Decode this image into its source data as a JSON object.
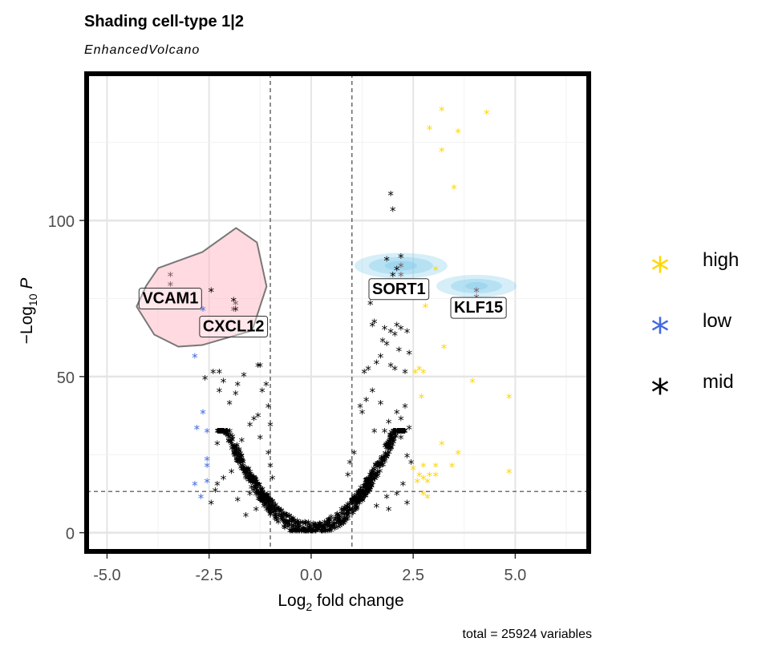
{
  "chart_data": {
    "type": "scatter",
    "title": "Shading cell-type 1|2",
    "subtitle": "EnhancedVolcano",
    "xlabel": "Log2 fold change",
    "ylabel": "-Log10 P",
    "caption": "total = 25924 variables",
    "xlim": [
      -5.5,
      6.8
    ],
    "ylim": [
      -6,
      147
    ],
    "x_ticks": [
      "-5.0",
      "-2.5",
      "0.0",
      "2.5",
      "5.0"
    ],
    "x_tick_values": [
      -5,
      -2.5,
      0,
      2.5,
      5
    ],
    "y_ticks": [
      "0",
      "50",
      "100"
    ],
    "y_tick_values": [
      0,
      50,
      100
    ],
    "fc_cutoff": 1.0,
    "p_cutoff_y": 13.2,
    "grid": true,
    "legend_position": "right",
    "colors": {
      "high": "#FFD700",
      "low": "#4169E1",
      "mid": "#000000",
      "shade1": "#FFB6C1",
      "shade2": "#87CEEB"
    },
    "series": [
      {
        "name": "high",
        "color": "#FFD700",
        "points": [
          [
            3.2,
            135
          ],
          [
            4.3,
            134
          ],
          [
            2.9,
            129
          ],
          [
            3.6,
            128
          ],
          [
            3.2,
            122
          ],
          [
            3.5,
            110
          ],
          [
            3.05,
            84
          ],
          [
            2.8,
            72
          ],
          [
            3.25,
            59
          ],
          [
            2.65,
            52
          ],
          [
            2.75,
            51
          ],
          [
            2.55,
            51
          ],
          [
            3.95,
            48
          ],
          [
            2.7,
            43
          ],
          [
            4.85,
            43
          ],
          [
            4.85,
            19
          ],
          [
            3.2,
            28
          ],
          [
            3.6,
            25
          ],
          [
            2.5,
            20
          ],
          [
            2.75,
            21
          ],
          [
            3.05,
            21
          ],
          [
            3.45,
            21
          ],
          [
            2.65,
            18
          ],
          [
            2.9,
            18
          ],
          [
            3.05,
            18
          ],
          [
            2.6,
            16
          ],
          [
            2.75,
            17
          ],
          [
            2.85,
            16
          ],
          [
            2.75,
            12
          ],
          [
            2.85,
            11
          ]
        ]
      },
      {
        "name": "low",
        "color": "#4169E1",
        "points": [
          [
            -2.65,
            71
          ],
          [
            -2.85,
            56
          ],
          [
            -2.65,
            38
          ],
          [
            -2.8,
            33
          ],
          [
            -2.55,
            32
          ],
          [
            -2.55,
            23
          ],
          [
            -2.55,
            21
          ],
          [
            -2.55,
            16
          ],
          [
            -2.85,
            15
          ],
          [
            -2.7,
            11
          ]
        ]
      },
      {
        "name": "mid",
        "color": "#000000",
        "points": [
          [
            1.95,
            108
          ],
          [
            2.0,
            103
          ],
          [
            2.2,
            88
          ],
          [
            1.85,
            87
          ],
          [
            2.1,
            84
          ],
          [
            2.0,
            82
          ],
          [
            1.45,
            73
          ],
          [
            -2.45,
            77
          ],
          [
            -1.9,
            74
          ],
          [
            -1.85,
            71
          ],
          [
            1.5,
            66
          ],
          [
            1.55,
            67
          ],
          [
            1.8,
            65
          ],
          [
            1.95,
            64
          ],
          [
            2.05,
            63
          ],
          [
            2.1,
            66
          ],
          [
            2.2,
            65
          ],
          [
            2.35,
            64
          ],
          [
            1.75,
            61
          ],
          [
            1.85,
            60
          ],
          [
            2.15,
            58
          ],
          [
            2.4,
            57
          ],
          [
            1.95,
            53
          ],
          [
            2.05,
            52
          ],
          [
            2.3,
            51
          ],
          [
            1.6,
            54
          ],
          [
            1.7,
            56
          ],
          [
            1.4,
            52
          ],
          [
            1.3,
            51
          ],
          [
            -2.4,
            51
          ],
          [
            -2.25,
            51
          ],
          [
            -2.15,
            48
          ],
          [
            -1.3,
            53
          ],
          [
            -1.25,
            53
          ],
          [
            -1.65,
            50
          ],
          [
            -2.6,
            49
          ],
          [
            -2.25,
            45
          ],
          [
            -1.8,
            47
          ],
          [
            -1.85,
            44
          ],
          [
            -1.1,
            47
          ],
          [
            -1.2,
            45
          ],
          [
            -2.0,
            41
          ],
          [
            -1.05,
            40
          ],
          [
            -1.3,
            37
          ],
          [
            -1.4,
            36
          ],
          [
            -1.5,
            34
          ],
          [
            -1.0,
            34
          ],
          [
            -2.3,
            28
          ],
          [
            -1.9,
            27
          ],
          [
            -1.7,
            29
          ],
          [
            -1.25,
            30
          ],
          [
            2.1,
            38
          ],
          [
            2.2,
            36
          ],
          [
            2.3,
            40
          ],
          [
            1.9,
            35
          ],
          [
            1.7,
            41
          ],
          [
            1.2,
            40
          ],
          [
            1.8,
            32
          ],
          [
            2.4,
            33
          ],
          [
            2.2,
            30
          ],
          [
            2.0,
            29
          ],
          [
            1.55,
            32
          ],
          [
            1.25,
            38
          ],
          [
            1.35,
            42
          ],
          [
            1.5,
            45
          ],
          [
            2.45,
            22
          ],
          [
            2.35,
            24
          ],
          [
            -2.15,
            17
          ],
          [
            -2.3,
            15
          ],
          [
            -1.95,
            19
          ],
          [
            -2.35,
            13
          ],
          [
            -2.45,
            9
          ],
          [
            -1.8,
            10
          ],
          [
            -1.5,
            12
          ],
          [
            2.25,
            15
          ],
          [
            2.1,
            12
          ],
          [
            1.85,
            11
          ],
          [
            2.35,
            9
          ],
          [
            1.6,
            8
          ],
          [
            1.9,
            7
          ],
          [
            -1.35,
            7
          ],
          [
            -1.6,
            5
          ],
          [
            0.95,
            22
          ],
          [
            1.05,
            25
          ],
          [
            0.9,
            18
          ],
          [
            -1.0,
            21
          ],
          [
            -0.95,
            17
          ],
          [
            -1.05,
            25
          ]
        ]
      }
    ],
    "cloud": [
      {
        "side": -1,
        "from": 0.0,
        "to": 1.5,
        "y_lo": 0,
        "y_hi": 18
      },
      {
        "side": 1,
        "from": 0.0,
        "to": 1.5,
        "y_lo": 0,
        "y_hi": 18
      },
      {
        "side": -1,
        "from": 1.0,
        "to": 2.3,
        "y_lo": 10,
        "y_hi": 32
      },
      {
        "side": 1,
        "from": 1.0,
        "to": 2.3,
        "y_lo": 10,
        "y_hi": 32
      }
    ],
    "shade_points": [
      [
        -3.45,
        82
      ],
      [
        -3.45,
        79
      ],
      [
        -1.9,
        71
      ],
      [
        -1.85,
        73
      ],
      [
        2.2,
        85
      ],
      [
        2.2,
        82
      ],
      [
        4.05,
        77
      ],
      [
        4.05,
        75
      ]
    ],
    "labels": [
      {
        "text": "VCAM1",
        "x": -3.45,
        "y": 75,
        "shaded": true
      },
      {
        "text": "CXCL12",
        "x": -1.9,
        "y": 66,
        "shaded": true
      },
      {
        "text": "SORT1",
        "x": 2.15,
        "y": 78,
        "shaded": false
      },
      {
        "text": "KLF15",
        "x": 4.1,
        "y": 72,
        "shaded": false
      }
    ],
    "legend": [
      {
        "label": "high",
        "color": "#FFD700"
      },
      {
        "label": "low",
        "color": "#4169E1"
      },
      {
        "label": "mid",
        "color": "#000000"
      }
    ]
  }
}
